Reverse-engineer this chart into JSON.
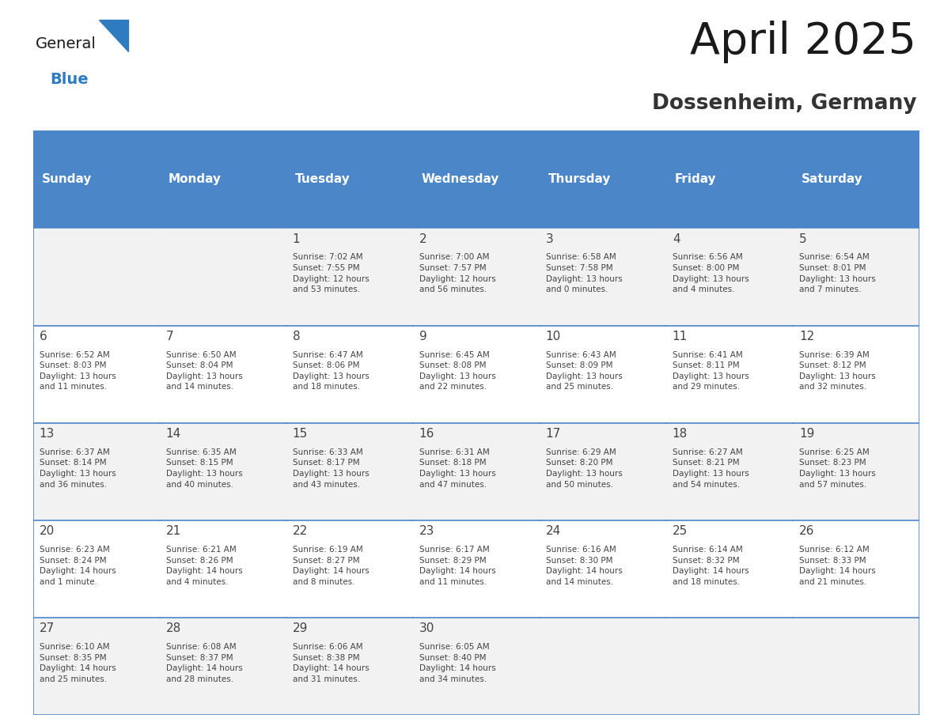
{
  "title": "April 2025",
  "subtitle": "Dossenheim, Germany",
  "days_of_week": [
    "Sunday",
    "Monday",
    "Tuesday",
    "Wednesday",
    "Thursday",
    "Friday",
    "Saturday"
  ],
  "header_bg_color": "#4a86c8",
  "header_text_color": "#ffffff",
  "cell_bg_row0": "#f2f2f2",
  "cell_bg_row1": "#ffffff",
  "cell_bg_row2": "#f2f2f2",
  "cell_bg_row3": "#ffffff",
  "cell_bg_row4": "#f2f2f2",
  "cell_border_color": "#4a86c8",
  "text_color": "#444444",
  "title_color": "#1a1a1a",
  "subtitle_color": "#333333",
  "calendar_data": [
    [
      {
        "day": "",
        "info": ""
      },
      {
        "day": "",
        "info": ""
      },
      {
        "day": "1",
        "info": "Sunrise: 7:02 AM\nSunset: 7:55 PM\nDaylight: 12 hours\nand 53 minutes."
      },
      {
        "day": "2",
        "info": "Sunrise: 7:00 AM\nSunset: 7:57 PM\nDaylight: 12 hours\nand 56 minutes."
      },
      {
        "day": "3",
        "info": "Sunrise: 6:58 AM\nSunset: 7:58 PM\nDaylight: 13 hours\nand 0 minutes."
      },
      {
        "day": "4",
        "info": "Sunrise: 6:56 AM\nSunset: 8:00 PM\nDaylight: 13 hours\nand 4 minutes."
      },
      {
        "day": "5",
        "info": "Sunrise: 6:54 AM\nSunset: 8:01 PM\nDaylight: 13 hours\nand 7 minutes."
      }
    ],
    [
      {
        "day": "6",
        "info": "Sunrise: 6:52 AM\nSunset: 8:03 PM\nDaylight: 13 hours\nand 11 minutes."
      },
      {
        "day": "7",
        "info": "Sunrise: 6:50 AM\nSunset: 8:04 PM\nDaylight: 13 hours\nand 14 minutes."
      },
      {
        "day": "8",
        "info": "Sunrise: 6:47 AM\nSunset: 8:06 PM\nDaylight: 13 hours\nand 18 minutes."
      },
      {
        "day": "9",
        "info": "Sunrise: 6:45 AM\nSunset: 8:08 PM\nDaylight: 13 hours\nand 22 minutes."
      },
      {
        "day": "10",
        "info": "Sunrise: 6:43 AM\nSunset: 8:09 PM\nDaylight: 13 hours\nand 25 minutes."
      },
      {
        "day": "11",
        "info": "Sunrise: 6:41 AM\nSunset: 8:11 PM\nDaylight: 13 hours\nand 29 minutes."
      },
      {
        "day": "12",
        "info": "Sunrise: 6:39 AM\nSunset: 8:12 PM\nDaylight: 13 hours\nand 32 minutes."
      }
    ],
    [
      {
        "day": "13",
        "info": "Sunrise: 6:37 AM\nSunset: 8:14 PM\nDaylight: 13 hours\nand 36 minutes."
      },
      {
        "day": "14",
        "info": "Sunrise: 6:35 AM\nSunset: 8:15 PM\nDaylight: 13 hours\nand 40 minutes."
      },
      {
        "day": "15",
        "info": "Sunrise: 6:33 AM\nSunset: 8:17 PM\nDaylight: 13 hours\nand 43 minutes."
      },
      {
        "day": "16",
        "info": "Sunrise: 6:31 AM\nSunset: 8:18 PM\nDaylight: 13 hours\nand 47 minutes."
      },
      {
        "day": "17",
        "info": "Sunrise: 6:29 AM\nSunset: 8:20 PM\nDaylight: 13 hours\nand 50 minutes."
      },
      {
        "day": "18",
        "info": "Sunrise: 6:27 AM\nSunset: 8:21 PM\nDaylight: 13 hours\nand 54 minutes."
      },
      {
        "day": "19",
        "info": "Sunrise: 6:25 AM\nSunset: 8:23 PM\nDaylight: 13 hours\nand 57 minutes."
      }
    ],
    [
      {
        "day": "20",
        "info": "Sunrise: 6:23 AM\nSunset: 8:24 PM\nDaylight: 14 hours\nand 1 minute."
      },
      {
        "day": "21",
        "info": "Sunrise: 6:21 AM\nSunset: 8:26 PM\nDaylight: 14 hours\nand 4 minutes."
      },
      {
        "day": "22",
        "info": "Sunrise: 6:19 AM\nSunset: 8:27 PM\nDaylight: 14 hours\nand 8 minutes."
      },
      {
        "day": "23",
        "info": "Sunrise: 6:17 AM\nSunset: 8:29 PM\nDaylight: 14 hours\nand 11 minutes."
      },
      {
        "day": "24",
        "info": "Sunrise: 6:16 AM\nSunset: 8:30 PM\nDaylight: 14 hours\nand 14 minutes."
      },
      {
        "day": "25",
        "info": "Sunrise: 6:14 AM\nSunset: 8:32 PM\nDaylight: 14 hours\nand 18 minutes."
      },
      {
        "day": "26",
        "info": "Sunrise: 6:12 AM\nSunset: 8:33 PM\nDaylight: 14 hours\nand 21 minutes."
      }
    ],
    [
      {
        "day": "27",
        "info": "Sunrise: 6:10 AM\nSunset: 8:35 PM\nDaylight: 14 hours\nand 25 minutes."
      },
      {
        "day": "28",
        "info": "Sunrise: 6:08 AM\nSunset: 8:37 PM\nDaylight: 14 hours\nand 28 minutes."
      },
      {
        "day": "29",
        "info": "Sunrise: 6:06 AM\nSunset: 8:38 PM\nDaylight: 14 hours\nand 31 minutes."
      },
      {
        "day": "30",
        "info": "Sunrise: 6:05 AM\nSunset: 8:40 PM\nDaylight: 14 hours\nand 34 minutes."
      },
      {
        "day": "",
        "info": ""
      },
      {
        "day": "",
        "info": ""
      },
      {
        "day": "",
        "info": ""
      }
    ]
  ],
  "logo_text_general": "General",
  "logo_text_blue": "Blue",
  "logo_triangle_color": "#2e7bbf",
  "logo_general_color": "#1a1a1a",
  "logo_blue_color": "#2e7bbf",
  "fig_width": 11.88,
  "fig_height": 9.18,
  "dpi": 100
}
